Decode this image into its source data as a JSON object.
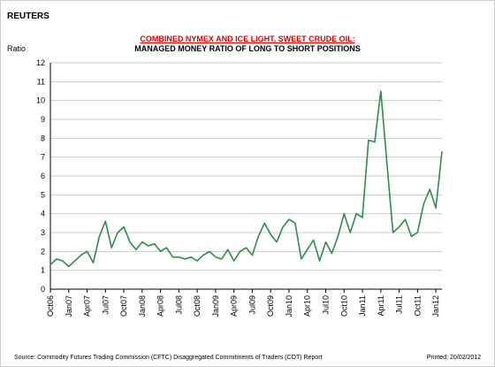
{
  "header": {
    "publisher": "REUTERS",
    "title_line1": "COMBINED NYMEX AND ICE LIGHT, SWEET CRUDE OIL:",
    "title_line2": "MANAGED MONEY RATIO OF LONG TO SHORT POSITIONS"
  },
  "footer": {
    "source": "Source:  Commodity Futures Trading Commission (CFTC) Disaggregated Commitments of Traders (COT) Report",
    "printed": "Printed:  20/02/2012"
  },
  "colors": {
    "line": "#2e8b4e",
    "grid": "#c8c8c8",
    "title_red": "#e00000"
  },
  "chart_data": {
    "type": "line",
    "title": "COMBINED NYMEX AND ICE LIGHT, SWEET CRUDE OIL: MANAGED MONEY RATIO OF LONG TO SHORT POSITIONS",
    "ylabel": "Ratio",
    "xlabel": "",
    "ylim": [
      0,
      12
    ],
    "yticks": [
      0,
      1,
      2,
      3,
      4,
      5,
      6,
      7,
      8,
      9,
      10,
      11,
      12
    ],
    "xlim": [
      "2006-10",
      "2012-02"
    ],
    "xticks": [
      "Oct06",
      "Jan07",
      "Apr07",
      "Jul07",
      "Oct07",
      "Jan08",
      "Apr08",
      "Jul08",
      "Oct08",
      "Jan09",
      "Apr09",
      "Jul09",
      "Oct09",
      "Jan10",
      "Apr10",
      "Jul10",
      "Oct10",
      "Jan11",
      "Apr11",
      "Jul11",
      "Oct11",
      "Jan12"
    ],
    "grid": "horizontal",
    "legend": "none",
    "series": [
      {
        "x": [
          "2006-10",
          "2006-11",
          "2006-12",
          "2007-01",
          "2007-02",
          "2007-03",
          "2007-04",
          "2007-05",
          "2007-06",
          "2007-07",
          "2007-08",
          "2007-09",
          "2007-10",
          "2007-11",
          "2007-12",
          "2008-01",
          "2008-02",
          "2008-03",
          "2008-04",
          "2008-05",
          "2008-06",
          "2008-07",
          "2008-08",
          "2008-09",
          "2008-10",
          "2008-11",
          "2008-12",
          "2009-01",
          "2009-02",
          "2009-03",
          "2009-04",
          "2009-05",
          "2009-06",
          "2009-07",
          "2009-08",
          "2009-09",
          "2009-10",
          "2009-11",
          "2009-12",
          "2010-01",
          "2010-02",
          "2010-03",
          "2010-04",
          "2010-05",
          "2010-06",
          "2010-07",
          "2010-08",
          "2010-09",
          "2010-10",
          "2010-11",
          "2010-12",
          "2011-01",
          "2011-02",
          "2011-03",
          "2011-04",
          "2011-05",
          "2011-06",
          "2011-07",
          "2011-08",
          "2011-09",
          "2011-10",
          "2011-11",
          "2011-12",
          "2012-01",
          "2012-02"
        ],
        "values": [
          1.3,
          1.6,
          1.5,
          1.2,
          1.5,
          1.8,
          2.0,
          1.4,
          2.8,
          3.6,
          2.2,
          3.0,
          3.3,
          2.5,
          2.1,
          2.5,
          2.3,
          2.4,
          2.0,
          2.2,
          1.7,
          1.7,
          1.6,
          1.7,
          1.5,
          1.8,
          2.0,
          1.7,
          1.6,
          2.1,
          1.5,
          2.0,
          2.2,
          1.8,
          2.8,
          3.5,
          2.9,
          2.5,
          3.3,
          3.7,
          3.5,
          1.6,
          2.1,
          2.6,
          1.5,
          2.5,
          1.9,
          2.8,
          4.0,
          3.0,
          4.0,
          3.8,
          7.9,
          7.8,
          10.5,
          6.7,
          3.0,
          3.3,
          3.7,
          2.8,
          3.0,
          4.5,
          5.3,
          4.3,
          7.3
        ]
      }
    ]
  }
}
